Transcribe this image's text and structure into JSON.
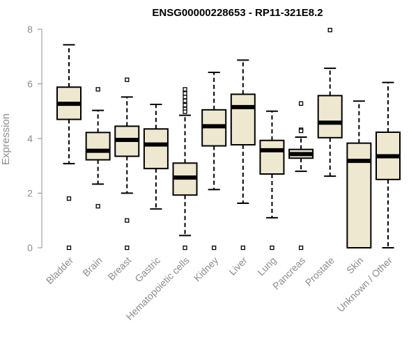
{
  "chart_data": {
    "type": "boxplot",
    "title": "ENSG00000228653 - RP11-321E8.2",
    "xlabel": "",
    "ylabel": "Expression",
    "ylim": [
      0,
      8
    ],
    "yticks": [
      0,
      2,
      4,
      6,
      8
    ],
    "grid": false,
    "box_fill": "#EEE8D0",
    "categories": [
      "Bladder",
      "Brain",
      "Breast",
      "Gastric",
      "Hematopoietic cells",
      "Kidney",
      "Liver",
      "Lung",
      "Pancreas",
      "Prostate",
      "Skin",
      "Unknown / Other"
    ],
    "boxes": [
      {
        "label": "Bladder",
        "whisker_low": 3.08,
        "q1": 4.7,
        "median": 5.27,
        "q3": 5.88,
        "whisker_high": 7.43,
        "outliers": [
          1.8,
          0.0
        ]
      },
      {
        "label": "Brain",
        "whisker_low": 2.33,
        "q1": 3.22,
        "median": 3.55,
        "q3": 4.22,
        "whisker_high": 5.03,
        "outliers": [
          5.8,
          1.52
        ]
      },
      {
        "label": "Breast",
        "whisker_low": 2.0,
        "q1": 3.35,
        "median": 3.95,
        "q3": 4.45,
        "whisker_high": 5.52,
        "outliers": [
          6.15,
          1.0,
          0.0
        ]
      },
      {
        "label": "Gastric",
        "whisker_low": 1.42,
        "q1": 2.9,
        "median": 3.78,
        "q3": 4.35,
        "whisker_high": 5.25,
        "outliers": []
      },
      {
        "label": "Hematopoietic cells",
        "whisker_low": 0.45,
        "q1": 1.93,
        "median": 2.57,
        "q3": 3.1,
        "whisker_high": 4.85,
        "outliers": [
          5.8,
          5.65,
          5.52,
          5.38,
          5.22,
          5.08,
          4.98,
          0.0
        ]
      },
      {
        "label": "Kidney",
        "whisker_low": 2.13,
        "q1": 3.73,
        "median": 4.45,
        "q3": 5.05,
        "whisker_high": 6.42,
        "outliers": [
          0.0
        ]
      },
      {
        "label": "Liver",
        "whisker_low": 1.63,
        "q1": 3.77,
        "median": 5.15,
        "q3": 5.62,
        "whisker_high": 6.87,
        "outliers": [
          0.0
        ]
      },
      {
        "label": "Lung",
        "whisker_low": 1.1,
        "q1": 2.7,
        "median": 3.57,
        "q3": 3.93,
        "whisker_high": 5.0,
        "outliers": [
          0.0
        ]
      },
      {
        "label": "Pancreas",
        "whisker_low": 2.8,
        "q1": 3.28,
        "median": 3.43,
        "q3": 3.6,
        "whisker_high": 4.05,
        "outliers": [
          5.28,
          4.32,
          4.28,
          0.0
        ]
      },
      {
        "label": "Prostate",
        "whisker_low": 2.62,
        "q1": 4.03,
        "median": 4.58,
        "q3": 5.57,
        "whisker_high": 6.57,
        "outliers": [
          7.97
        ]
      },
      {
        "label": "Skin",
        "whisker_low": 0.0,
        "q1": 0.0,
        "median": 3.18,
        "q3": 3.83,
        "whisker_high": 5.37,
        "outliers": []
      },
      {
        "label": "Unknown / Other",
        "whisker_low": 0.0,
        "q1": 2.5,
        "median": 3.35,
        "q3": 4.23,
        "whisker_high": 6.05,
        "outliers": []
      }
    ]
  }
}
